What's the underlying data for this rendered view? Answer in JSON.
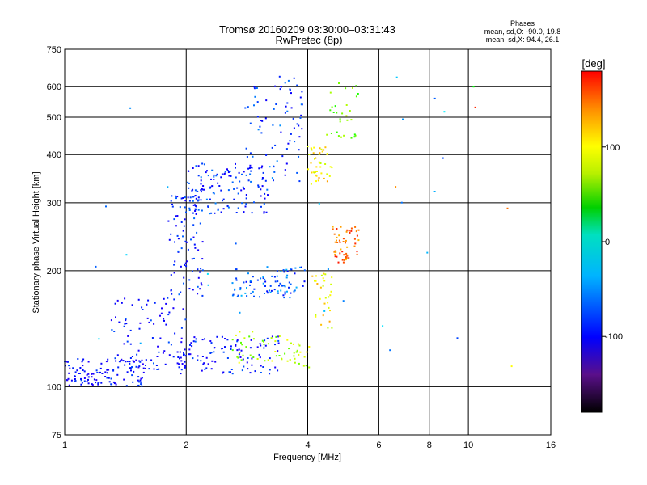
{
  "chart_data": {
    "type": "scatter",
    "title": "Tromsø 20160209 03:30:00–03:31:43",
    "subtitle": "RwPretec (8p)",
    "xlabel": "Frequency [MHz]",
    "ylabel": "Stationary phase Virtual Height [km]",
    "x_scale": "log",
    "y_scale": "log",
    "xlim": [
      1,
      16
    ],
    "ylim": [
      75,
      750
    ],
    "x_ticks": [
      1,
      2,
      4,
      6,
      8,
      10,
      16
    ],
    "x_tick_labels": [
      "1",
      "2",
      "4",
      "6",
      "8",
      "10",
      "16"
    ],
    "y_ticks": [
      75,
      100,
      200,
      300,
      400,
      500,
      600,
      750
    ],
    "y_tick_labels": [
      "75",
      "100",
      "200",
      "300",
      "400",
      "500",
      "600",
      "750"
    ],
    "grid": true,
    "stats": {
      "heading": "Phases",
      "line_o": "mean, sd,O:  -90.0, 19.8",
      "line_x": "mean, sd,X:  94.4, 26.1"
    },
    "colorbar": {
      "label": "[deg]",
      "range": [
        -180,
        180
      ],
      "ticks": [
        100,
        0,
        -100
      ],
      "tick_labels": [
        "100",
        "0",
        "-100"
      ]
    },
    "clusters": [
      {
        "x_range": [
          1.0,
          1.6
        ],
        "y_range": [
          100,
          120
        ],
        "phase": -105,
        "count": 120
      },
      {
        "x_range": [
          1.3,
          2.0
        ],
        "y_range": [
          110,
          170
        ],
        "phase": -100,
        "count": 90
      },
      {
        "x_range": [
          1.9,
          3.4
        ],
        "y_range": [
          108,
          135
        ],
        "phase": -100,
        "count": 110
      },
      {
        "x_range": [
          1.8,
          2.2
        ],
        "y_range": [
          170,
          330
        ],
        "phase": -95,
        "count": 90
      },
      {
        "x_range": [
          2.0,
          3.2
        ],
        "y_range": [
          280,
          380
        ],
        "phase": -90,
        "count": 140
      },
      {
        "x_range": [
          2.8,
          3.9
        ],
        "y_range": [
          340,
          640
        ],
        "phase": -85,
        "count": 80
      },
      {
        "x_range": [
          2.6,
          4.0
        ],
        "y_range": [
          170,
          205
        ],
        "phase": -75,
        "count": 90
      },
      {
        "x_range": [
          2.6,
          3.6
        ],
        "y_range": [
          115,
          140
        ],
        "phase": 85,
        "count": 40
      },
      {
        "x_range": [
          4.0,
          4.6
        ],
        "y_range": [
          330,
          420
        ],
        "phase": 115,
        "count": 45
      },
      {
        "x_range": [
          4.4,
          5.4
        ],
        "y_range": [
          440,
          620
        ],
        "phase": 70,
        "count": 30
      },
      {
        "x_range": [
          4.6,
          5.4
        ],
        "y_range": [
          210,
          260
        ],
        "phase": 150,
        "count": 55
      },
      {
        "x_range": [
          4.1,
          4.6
        ],
        "y_range": [
          140,
          200
        ],
        "phase": 110,
        "count": 30
      },
      {
        "x_range": [
          3.6,
          4.1
        ],
        "y_range": [
          112,
          130
        ],
        "phase": 95,
        "count": 20
      },
      {
        "x_range": [
          1.0,
          10.0
        ],
        "y_range": [
          100,
          650
        ],
        "phase": -60,
        "count": 30
      }
    ],
    "extra_points": [
      {
        "x": 10.3,
        "y": 600,
        "phase": 40
      },
      {
        "x": 10.4,
        "y": 530,
        "phase": 170
      },
      {
        "x": 12.5,
        "y": 290,
        "phase": 150
      },
      {
        "x": 12.8,
        "y": 113,
        "phase": 110
      },
      {
        "x": 6.6,
        "y": 330,
        "phase": 140
      }
    ]
  }
}
